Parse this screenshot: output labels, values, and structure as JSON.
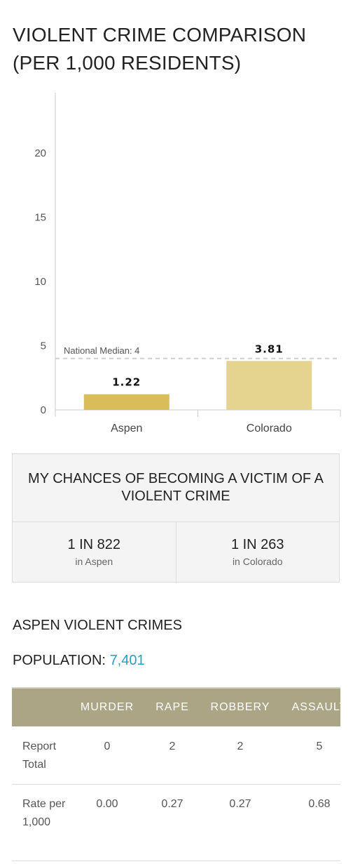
{
  "title": "VIOLENT CRIME COMPARISON (PER 1,000 RESIDENTS)",
  "chart_data": {
    "type": "bar",
    "categories": [
      "Aspen",
      "Colorado"
    ],
    "values": [
      1.22,
      3.81
    ],
    "value_labels": [
      "1.22",
      "3.81"
    ],
    "ylim": [
      0,
      25
    ],
    "yticks": [
      0,
      5,
      10,
      15,
      20
    ],
    "reference_line": {
      "label": "National Median: 4",
      "value": 4
    },
    "colors": [
      "#d9bd58",
      "#e5d48f"
    ],
    "grid": false
  },
  "chances": {
    "heading": "MY CHANCES OF BECOMING A VICTIM OF A VIOLENT CRIME",
    "items": [
      {
        "value": "1 IN 822",
        "location": "in Aspen"
      },
      {
        "value": "1 IN 263",
        "location": "in Colorado"
      }
    ]
  },
  "section_title": "ASPEN VIOLENT CRIMES",
  "population": {
    "label": "POPULATION:",
    "value": "7,401"
  },
  "table": {
    "headers": [
      "",
      "MURDER",
      "RAPE",
      "ROBBERY",
      "ASSAULT"
    ],
    "rows": [
      {
        "label": "Report Total",
        "cells": [
          "0",
          "2",
          "2",
          "5"
        ]
      },
      {
        "label": "Rate per 1,000",
        "cells": [
          "0.00",
          "0.27",
          "0.27",
          "0.68"
        ]
      }
    ]
  },
  "colors": {
    "accent": "#2a9fc2",
    "table_header": "#aba485"
  }
}
